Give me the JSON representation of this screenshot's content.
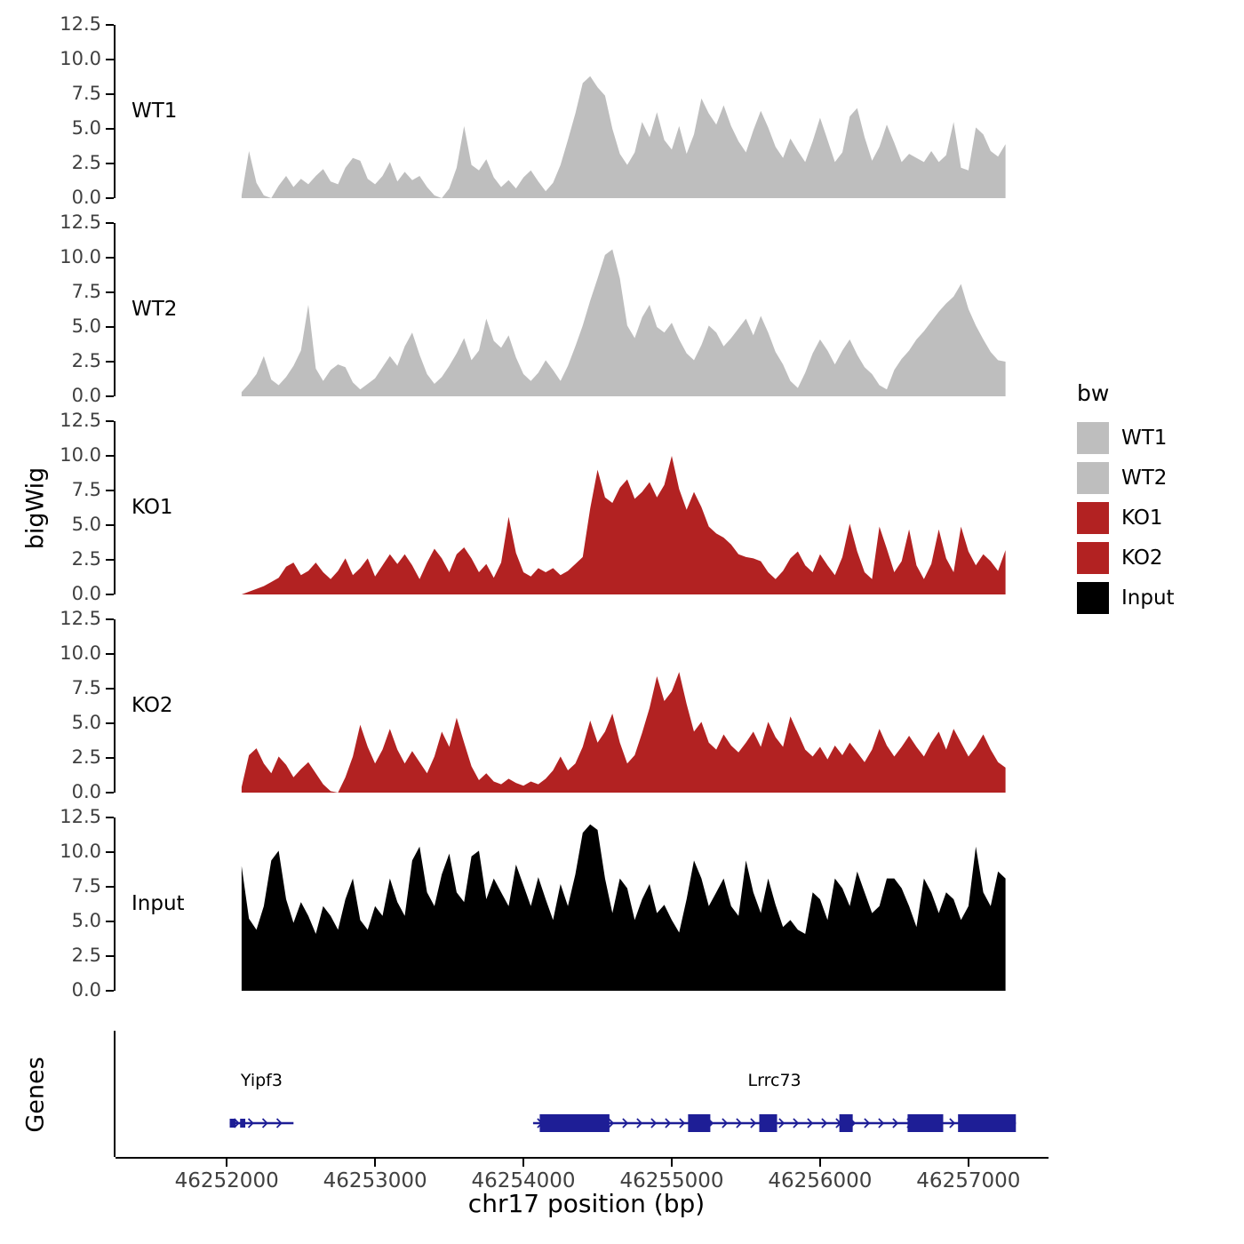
{
  "chart_data": {
    "type": "area",
    "title": "",
    "xlabel": "chr17 position (bp)",
    "ylabel": "bigWig",
    "genes_label": "Genes",
    "xlim": [
      46251250,
      46257540
    ],
    "ylim": [
      0,
      12.5
    ],
    "yticks": [
      0.0,
      2.5,
      5.0,
      7.5,
      10.0,
      12.5
    ],
    "xticks": [
      46252000,
      46253000,
      46254000,
      46255000,
      46256000,
      46257000
    ],
    "x_start": 46252100,
    "x_step": 50,
    "gene_color": "#1e1e96",
    "tracks": [
      {
        "name": "WT1",
        "color": "#bebebe",
        "values": [
          0.2,
          3.4,
          1.1,
          0.2,
          0.0,
          0.9,
          1.6,
          0.8,
          1.4,
          1.0,
          1.6,
          2.1,
          1.2,
          1.0,
          2.2,
          2.9,
          2.7,
          1.4,
          1.0,
          1.6,
          2.6,
          1.2,
          1.9,
          1.3,
          1.6,
          0.8,
          0.2,
          0.0,
          0.7,
          2.2,
          5.2,
          2.4,
          2.0,
          2.8,
          1.5,
          0.8,
          1.3,
          0.7,
          1.5,
          2.0,
          1.2,
          0.5,
          1.1,
          2.4,
          4.2,
          6.1,
          8.3,
          8.8,
          8.0,
          7.4,
          5.0,
          3.2,
          2.4,
          3.3,
          5.5,
          4.4,
          6.2,
          4.2,
          3.5,
          5.2,
          3.2,
          4.6,
          7.2,
          6.1,
          5.3,
          6.7,
          5.2,
          4.1,
          3.3,
          4.9,
          6.3,
          5.1,
          3.7,
          2.9,
          4.3,
          3.4,
          2.6,
          4.1,
          5.8,
          4.2,
          2.6,
          3.3,
          5.9,
          6.5,
          4.4,
          2.7,
          3.7,
          5.3,
          4.0,
          2.6,
          3.2,
          2.9,
          2.6,
          3.4,
          2.6,
          3.1,
          5.5,
          2.2,
          2.0,
          5.1,
          4.6,
          3.4,
          3.0,
          3.9
        ]
      },
      {
        "name": "WT2",
        "color": "#bebebe",
        "values": [
          0.3,
          0.9,
          1.6,
          2.9,
          1.2,
          0.8,
          1.4,
          2.2,
          3.3,
          6.6,
          2.0,
          1.1,
          1.9,
          2.3,
          2.1,
          1.0,
          0.5,
          0.9,
          1.3,
          2.1,
          2.9,
          2.2,
          3.6,
          4.6,
          3.0,
          1.6,
          0.9,
          1.4,
          2.2,
          3.1,
          4.2,
          2.6,
          3.3,
          5.6,
          4.0,
          3.5,
          4.4,
          2.8,
          1.6,
          1.1,
          1.7,
          2.6,
          1.9,
          1.1,
          2.2,
          3.6,
          5.1,
          6.9,
          8.5,
          10.2,
          10.6,
          8.5,
          5.1,
          4.2,
          5.7,
          6.6,
          5.0,
          4.6,
          5.3,
          4.1,
          3.1,
          2.6,
          3.7,
          5.1,
          4.6,
          3.6,
          4.2,
          4.9,
          5.6,
          4.4,
          5.8,
          4.6,
          3.2,
          2.3,
          1.1,
          0.6,
          1.7,
          3.1,
          4.1,
          3.3,
          2.3,
          3.3,
          4.1,
          3.0,
          2.1,
          1.6,
          0.8,
          0.5,
          1.9,
          2.7,
          3.3,
          4.1,
          4.7,
          5.4,
          6.1,
          6.7,
          7.2,
          8.1,
          6.3,
          5.1,
          4.1,
          3.2,
          2.6,
          2.5
        ]
      },
      {
        "name": "KO1",
        "color": "#b22222",
        "values": [
          0.0,
          0.2,
          0.4,
          0.6,
          0.9,
          1.2,
          2.0,
          2.3,
          1.4,
          1.7,
          2.3,
          1.6,
          1.1,
          1.7,
          2.6,
          1.4,
          1.9,
          2.6,
          1.3,
          2.1,
          2.9,
          2.2,
          2.9,
          2.1,
          1.1,
          2.3,
          3.3,
          2.6,
          1.6,
          2.9,
          3.4,
          2.6,
          1.6,
          2.2,
          1.2,
          2.3,
          5.6,
          3.0,
          1.6,
          1.3,
          1.9,
          1.6,
          1.9,
          1.4,
          1.7,
          2.2,
          2.7,
          6.2,
          9.0,
          7.0,
          6.6,
          7.7,
          8.3,
          6.9,
          7.4,
          8.1,
          7.0,
          7.9,
          10.0,
          7.6,
          6.1,
          7.4,
          6.3,
          4.9,
          4.4,
          4.1,
          3.6,
          2.9,
          2.7,
          2.6,
          2.4,
          1.6,
          1.1,
          1.7,
          2.6,
          3.1,
          2.1,
          1.6,
          2.9,
          2.1,
          1.4,
          2.7,
          5.1,
          3.1,
          1.6,
          1.1,
          4.9,
          3.3,
          1.6,
          2.4,
          4.7,
          2.1,
          1.1,
          2.2,
          4.7,
          2.6,
          1.6,
          4.9,
          3.1,
          2.1,
          2.9,
          2.4,
          1.7,
          3.2
        ]
      },
      {
        "name": "KO2",
        "color": "#b22222",
        "values": [
          0.4,
          2.7,
          3.2,
          2.1,
          1.4,
          2.6,
          2.0,
          1.1,
          1.7,
          2.2,
          1.4,
          0.6,
          0.1,
          0.0,
          1.1,
          2.6,
          4.9,
          3.3,
          2.1,
          3.1,
          4.6,
          3.1,
          2.1,
          3.0,
          2.2,
          1.4,
          2.6,
          4.4,
          3.3,
          5.4,
          3.6,
          1.9,
          0.9,
          1.4,
          0.8,
          0.6,
          1.0,
          0.7,
          0.5,
          0.8,
          0.6,
          1.0,
          1.6,
          2.6,
          1.6,
          2.1,
          3.3,
          5.2,
          3.6,
          4.4,
          5.7,
          3.6,
          2.1,
          2.7,
          4.3,
          6.1,
          8.4,
          6.6,
          7.3,
          8.7,
          6.4,
          4.4,
          5.1,
          3.6,
          3.1,
          4.2,
          3.4,
          2.9,
          3.6,
          4.4,
          3.3,
          5.1,
          4.0,
          3.3,
          5.5,
          4.3,
          3.1,
          2.6,
          3.3,
          2.4,
          3.4,
          2.7,
          3.6,
          2.9,
          2.2,
          3.1,
          4.6,
          3.4,
          2.6,
          3.3,
          4.1,
          3.3,
          2.6,
          3.6,
          4.4,
          3.1,
          4.6,
          3.6,
          2.6,
          3.3,
          4.2,
          3.1,
          2.2,
          1.8
        ]
      },
      {
        "name": "Input",
        "color": "#000000",
        "values": [
          9.0,
          5.2,
          4.4,
          6.1,
          9.4,
          10.1,
          6.6,
          4.9,
          6.4,
          5.4,
          4.1,
          6.1,
          5.4,
          4.4,
          6.6,
          8.1,
          5.1,
          4.4,
          6.1,
          5.4,
          8.1,
          6.4,
          5.4,
          9.4,
          10.4,
          7.1,
          6.1,
          8.4,
          9.9,
          7.1,
          6.4,
          9.7,
          10.1,
          6.6,
          8.1,
          7.1,
          6.1,
          9.1,
          7.6,
          6.1,
          8.2,
          6.6,
          5.1,
          7.7,
          6.1,
          8.4,
          11.4,
          12.0,
          11.6,
          8.1,
          5.6,
          8.1,
          7.4,
          5.1,
          6.6,
          7.7,
          5.6,
          6.2,
          5.1,
          4.2,
          6.6,
          9.4,
          8.1,
          6.1,
          7.1,
          8.1,
          6.1,
          5.4,
          9.4,
          7.1,
          5.6,
          8.1,
          6.2,
          4.6,
          5.1,
          4.4,
          4.1,
          7.1,
          6.6,
          5.1,
          8.1,
          7.4,
          6.1,
          8.6,
          7.1,
          5.6,
          6.1,
          8.1,
          8.1,
          7.4,
          6.1,
          4.6,
          8.1,
          7.1,
          5.6,
          7.1,
          6.6,
          5.1,
          6.1,
          10.4,
          7.1,
          6.1,
          8.6,
          8.1
        ]
      }
    ],
    "genes": [
      {
        "name": "Yipf3",
        "start": 46252020,
        "end": 46252450,
        "strand": "+",
        "exon_height": 10,
        "exons": [
          [
            46252020,
            46252060
          ],
          [
            46252090,
            46252125
          ]
        ]
      },
      {
        "name": "Lrrc73",
        "start": 46254065,
        "end": 46257320,
        "strand": "+",
        "exon_height": 20,
        "exons": [
          [
            46254110,
            46254580
          ],
          [
            46255110,
            46255260
          ],
          [
            46255590,
            46255710
          ],
          [
            46256130,
            46256220
          ],
          [
            46256590,
            46256830
          ],
          [
            46256930,
            46257320
          ]
        ]
      }
    ],
    "legend": {
      "title": "bw",
      "entries": [
        {
          "label": "WT1",
          "color": "#bebebe"
        },
        {
          "label": "WT2",
          "color": "#bebebe"
        },
        {
          "label": "KO1",
          "color": "#b22222"
        },
        {
          "label": "KO2",
          "color": "#b22222"
        },
        {
          "label": "Input",
          "color": "#000000"
        }
      ]
    }
  }
}
